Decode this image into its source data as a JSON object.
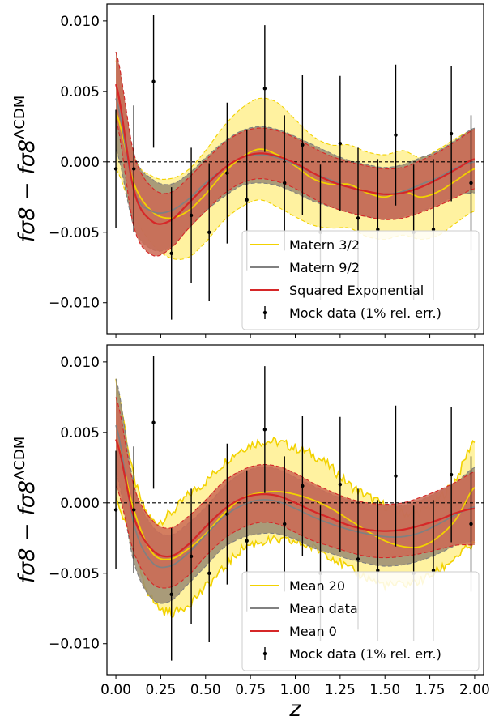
{
  "chart_data": [
    {
      "type": "line",
      "panel": "top",
      "xlabel": "z",
      "ylabel": "fσ8 − fσ8^ΛCDM",
      "xlim": [
        -0.05,
        2.05
      ],
      "ylim": [
        -0.0122,
        0.0112
      ],
      "yticks": [
        0.01,
        0.005,
        0.0,
        -0.005,
        -0.01
      ],
      "ytick_labels": [
        "0.010",
        "0.005",
        "0.000",
        "−0.005",
        "−0.010"
      ],
      "reference_line": 0.0,
      "legend_position": "lower right",
      "series": [
        {
          "name": "Matern 3/2",
          "color": "#f2d200",
          "fill": "#fff2a0",
          "x": [
            0.0,
            0.1,
            0.2,
            0.3,
            0.4,
            0.5,
            0.6,
            0.7,
            0.8,
            0.9,
            1.0,
            1.1,
            1.2,
            1.3,
            1.4,
            1.5,
            1.6,
            1.7,
            1.8,
            1.9,
            2.0
          ],
          "mean": [
            0.0035,
            -0.0015,
            -0.0035,
            -0.004,
            -0.0035,
            -0.0023,
            -0.0008,
            0.0003,
            0.0009,
            0.0005,
            -0.0003,
            -0.0012,
            -0.0016,
            -0.0016,
            -0.0022,
            -0.0025,
            -0.0021,
            -0.0025,
            -0.0021,
            -0.0013,
            -0.0005
          ],
          "upper": [
            0.0072,
            0.0005,
            -0.001,
            -0.0012,
            -0.0006,
            0.0008,
            0.0025,
            0.0038,
            0.0045,
            0.0042,
            0.003,
            0.0018,
            0.0012,
            0.0012,
            0.0007,
            0.0005,
            0.0008,
            0.0003,
            0.0009,
            0.0017,
            0.0023
          ],
          "lower": [
            -0.0005,
            -0.0038,
            -0.0058,
            -0.0068,
            -0.0068,
            -0.0057,
            -0.0042,
            -0.0032,
            -0.0027,
            -0.0032,
            -0.0039,
            -0.0045,
            -0.0047,
            -0.0047,
            -0.0053,
            -0.0055,
            -0.0052,
            -0.0055,
            -0.0052,
            -0.0043,
            -0.0035
          ]
        },
        {
          "name": "Matern 9/2",
          "color": "#808080",
          "fill": "#9a8c72",
          "x": [
            0.0,
            0.1,
            0.2,
            0.3,
            0.4,
            0.5,
            0.6,
            0.7,
            0.8,
            0.9,
            1.0,
            1.1,
            1.2,
            1.3,
            1.4,
            1.5,
            1.6,
            1.7,
            1.8,
            1.9,
            2.0
          ],
          "mean": [
            0.0045,
            -0.002,
            -0.0035,
            -0.0035,
            -0.0027,
            -0.0015,
            -0.0005,
            0.0003,
            0.0005,
            0.0003,
            -0.0002,
            -0.0008,
            -0.0013,
            -0.0018,
            -0.0021,
            -0.0023,
            -0.0021,
            -0.0016,
            -0.0011,
            -0.0004,
            0.0
          ],
          "upper": [
            0.0078,
            0.0006,
            -0.0012,
            -0.0016,
            -0.0009,
            0.0003,
            0.0014,
            0.0022,
            0.0025,
            0.0023,
            0.0018,
            0.0012,
            0.0006,
            0.0001,
            -0.0002,
            -0.0004,
            -0.0002,
            0.0003,
            0.0008,
            0.0016,
            0.0024
          ],
          "lower": [
            0.0009,
            -0.0046,
            -0.0062,
            -0.0061,
            -0.0048,
            -0.0035,
            -0.0025,
            -0.0017,
            -0.0015,
            -0.0017,
            -0.0022,
            -0.0028,
            -0.0032,
            -0.0036,
            -0.0039,
            -0.0041,
            -0.0039,
            -0.0035,
            -0.003,
            -0.0024,
            -0.0022
          ]
        },
        {
          "name": "Squared Exponential",
          "color": "#d62728",
          "fill": "#cc6a55",
          "x": [
            0.0,
            0.1,
            0.2,
            0.3,
            0.4,
            0.5,
            0.6,
            0.7,
            0.8,
            0.9,
            1.0,
            1.1,
            1.2,
            1.3,
            1.4,
            1.5,
            1.6,
            1.7,
            1.8,
            1.9,
            2.0
          ],
          "mean": [
            0.0055,
            -0.002,
            -0.0042,
            -0.0042,
            -0.003,
            -0.0017,
            -0.0005,
            0.0003,
            0.0006,
            0.0004,
            -0.0001,
            -0.0008,
            -0.0014,
            -0.0018,
            -0.0021,
            -0.0023,
            -0.0022,
            -0.0018,
            -0.0012,
            -0.0005,
            0.0002
          ],
          "upper": [
            0.0078,
            0.0006,
            -0.0018,
            -0.0022,
            -0.0012,
            0.0001,
            0.0013,
            0.0021,
            0.0024,
            0.0022,
            0.0017,
            0.001,
            0.0004,
            0.0,
            -0.0003,
            -0.0005,
            -0.0004,
            0.0001,
            0.0007,
            0.0015,
            0.0023
          ],
          "lower": [
            0.003,
            -0.0046,
            -0.0066,
            -0.0062,
            -0.0048,
            -0.0035,
            -0.0023,
            -0.0015,
            -0.0012,
            -0.0014,
            -0.0019,
            -0.0026,
            -0.0032,
            -0.0036,
            -0.0039,
            -0.0041,
            -0.004,
            -0.0036,
            -0.0031,
            -0.0025,
            -0.0019
          ]
        }
      ],
      "mock_data": {
        "name": "Mock data (1% rel. err.)",
        "color": "#000000",
        "x": [
          0.0,
          0.1,
          0.21,
          0.31,
          0.42,
          0.52,
          0.62,
          0.73,
          0.83,
          0.94,
          1.04,
          1.14,
          1.25,
          1.35,
          1.46,
          1.56,
          1.66,
          1.77,
          1.87,
          1.98
        ],
        "y": [
          -0.0005,
          -0.0005,
          0.0057,
          -0.0065,
          -0.0038,
          -0.005,
          -0.0008,
          -0.0027,
          0.0052,
          -0.0015,
          0.0012,
          -0.005,
          0.0013,
          -0.004,
          -0.0048,
          0.0019,
          -0.005,
          -0.0048,
          0.002,
          -0.0015
        ],
        "err": [
          0.0042,
          0.0045,
          0.0047,
          0.0047,
          0.0048,
          0.0049,
          0.005,
          0.005,
          0.0045,
          0.0048,
          0.005,
          0.0048,
          0.0048,
          0.005,
          0.005,
          0.005,
          0.0048,
          0.005,
          0.0048,
          0.0048
        ]
      }
    },
    {
      "type": "line",
      "panel": "bottom",
      "xlabel": "z",
      "ylabel": "fσ8 − fσ8^ΛCDM",
      "xlim": [
        -0.05,
        2.05
      ],
      "ylim": [
        -0.0122,
        0.0112
      ],
      "xticks": [
        0.0,
        0.25,
        0.5,
        0.75,
        1.0,
        1.25,
        1.5,
        1.75,
        2.0
      ],
      "xtick_labels": [
        "0.00",
        "0.25",
        "0.50",
        "0.75",
        "1.00",
        "1.25",
        "1.50",
        "1.75",
        "2.00"
      ],
      "yticks": [
        0.01,
        0.005,
        0.0,
        -0.005,
        -0.01
      ],
      "ytick_labels": [
        "0.010",
        "0.005",
        "0.000",
        "−0.005",
        "−0.010"
      ],
      "reference_line": 0.0,
      "legend_position": "lower right",
      "series": [
        {
          "name": "Mean 20",
          "color": "#f2d200",
          "fill": "#fff2a0",
          "noisy_edges": true,
          "x": [
            0.0,
            0.1,
            0.2,
            0.3,
            0.4,
            0.5,
            0.6,
            0.7,
            0.8,
            0.9,
            1.0,
            1.1,
            1.2,
            1.3,
            1.4,
            1.5,
            1.6,
            1.7,
            1.8,
            1.9,
            2.0
          ],
          "mean": [
            0.0045,
            -0.0005,
            -0.0035,
            -0.004,
            -0.0033,
            -0.0022,
            -0.0008,
            0.0003,
            0.0007,
            0.0008,
            0.0006,
            0.0002,
            -0.0004,
            -0.0012,
            -0.002,
            -0.0027,
            -0.0031,
            -0.0031,
            -0.0024,
            -0.0011,
            0.0011
          ],
          "upper": [
            0.0085,
            0.0018,
            -0.0012,
            -0.0008,
            0.0005,
            0.0015,
            0.0028,
            0.0038,
            0.0043,
            0.0043,
            0.0039,
            0.0034,
            0.0025,
            0.0013,
            0.0005,
            -0.0002,
            -0.0007,
            -0.0006,
            0.0003,
            0.0018,
            0.0045
          ],
          "lower": [
            0.0003,
            -0.0035,
            -0.0068,
            -0.0078,
            -0.0072,
            -0.006,
            -0.0047,
            -0.0033,
            -0.0028,
            -0.0027,
            -0.0028,
            -0.0032,
            -0.0038,
            -0.0047,
            -0.0053,
            -0.0058,
            -0.0058,
            -0.0055,
            -0.0048,
            -0.0038,
            -0.003
          ]
        },
        {
          "name": "Mean data",
          "color": "#808080",
          "fill": "#9a8c72",
          "x": [
            0.0,
            0.1,
            0.2,
            0.3,
            0.4,
            0.5,
            0.6,
            0.7,
            0.8,
            0.9,
            1.0,
            1.1,
            1.2,
            1.3,
            1.4,
            1.5,
            1.6,
            1.7,
            1.8,
            1.9,
            2.0
          ],
          "mean": [
            0.0055,
            -0.0015,
            -0.0042,
            -0.0045,
            -0.0036,
            -0.0023,
            -0.001,
            -0.0002,
            0.0002,
            0.0001,
            -0.0004,
            -0.001,
            -0.0015,
            -0.0019,
            -0.0022,
            -0.0024,
            -0.0024,
            -0.0021,
            -0.0015,
            -0.0008,
            -0.0003
          ],
          "upper": [
            0.0088,
            0.0013,
            -0.0016,
            -0.0023,
            -0.0015,
            -0.0003,
            0.0011,
            0.0021,
            0.0025,
            0.0024,
            0.0018,
            0.0012,
            0.0006,
            0.0002,
            -0.0001,
            -0.0002,
            -0.0002,
            0.0002,
            0.0008,
            0.0015,
            0.0025
          ],
          "lower": [
            0.0022,
            -0.0042,
            -0.0068,
            -0.007,
            -0.0058,
            -0.0045,
            -0.0032,
            -0.0025,
            -0.0022,
            -0.0022,
            -0.0026,
            -0.0032,
            -0.0036,
            -0.004,
            -0.0043,
            -0.0045,
            -0.0044,
            -0.0041,
            -0.0036,
            -0.003,
            -0.0027
          ]
        },
        {
          "name": "Mean 0",
          "color": "#d62728",
          "fill": "#cc6a55",
          "x": [
            0.0,
            0.1,
            0.2,
            0.3,
            0.4,
            0.5,
            0.6,
            0.7,
            0.8,
            0.9,
            1.0,
            1.1,
            1.2,
            1.3,
            1.4,
            1.5,
            1.6,
            1.7,
            1.8,
            1.9,
            2.0
          ],
          "mean": [
            0.0045,
            -0.001,
            -0.0033,
            -0.0038,
            -0.003,
            -0.0017,
            -0.0005,
            0.0003,
            0.0006,
            0.0005,
            0.0,
            -0.0006,
            -0.0011,
            -0.0016,
            -0.0019,
            -0.002,
            -0.0019,
            -0.0016,
            -0.0012,
            -0.0007,
            -0.0004
          ],
          "upper": [
            0.0075,
            0.0012,
            -0.0012,
            -0.0018,
            -0.001,
            0.0002,
            0.0015,
            0.0023,
            0.0027,
            0.0026,
            0.0021,
            0.0014,
            0.0008,
            0.0003,
            0.0,
            -0.0001,
            0.0,
            0.0004,
            0.0009,
            0.0015,
            0.0022
          ],
          "lower": [
            0.0012,
            -0.0035,
            -0.0057,
            -0.006,
            -0.0052,
            -0.0038,
            -0.0026,
            -0.0018,
            -0.0014,
            -0.0015,
            -0.0021,
            -0.0027,
            -0.0031,
            -0.0035,
            -0.0038,
            -0.0039,
            -0.0038,
            -0.0036,
            -0.0033,
            -0.003,
            -0.003
          ]
        }
      ],
      "mock_data": {
        "name": "Mock data (1% rel. err.)",
        "color": "#000000",
        "x": [
          0.0,
          0.1,
          0.21,
          0.31,
          0.42,
          0.52,
          0.62,
          0.73,
          0.83,
          0.94,
          1.04,
          1.14,
          1.25,
          1.35,
          1.46,
          1.56,
          1.66,
          1.77,
          1.87,
          1.98
        ],
        "y": [
          -0.0005,
          -0.0005,
          0.0057,
          -0.0065,
          -0.0038,
          -0.005,
          -0.0008,
          -0.0027,
          0.0052,
          -0.0015,
          0.0012,
          -0.005,
          0.0013,
          -0.004,
          -0.0048,
          0.0019,
          -0.005,
          -0.0048,
          0.002,
          -0.0015
        ],
        "err": [
          0.0042,
          0.0045,
          0.0047,
          0.0047,
          0.0048,
          0.0049,
          0.005,
          0.005,
          0.0045,
          0.0048,
          0.005,
          0.0048,
          0.0048,
          0.005,
          0.005,
          0.005,
          0.0048,
          0.005,
          0.0048,
          0.0048
        ]
      }
    }
  ]
}
